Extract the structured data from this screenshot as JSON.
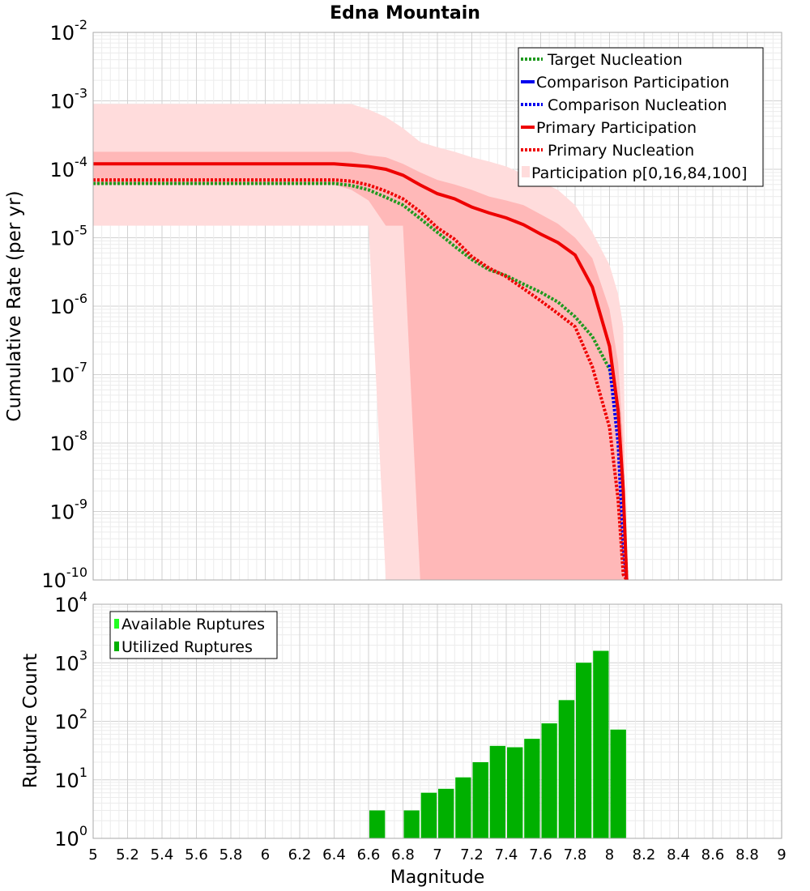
{
  "chart_data": [
    {
      "type": "line",
      "title": "Edna Mountain",
      "ylabel": "Cumulative Rate (per yr)",
      "xlabel": "",
      "xlim": [
        5,
        9
      ],
      "ylim": [
        1e-10,
        0.01
      ],
      "yscale": "log",
      "y_tick_base": "10",
      "y_tick_exponents": [
        "-10",
        "-9",
        "-8",
        "-7",
        "-6",
        "-5",
        "-4",
        "-3",
        "-2"
      ],
      "legend": {
        "position": "top-right",
        "entries": [
          "Target Nucleation",
          "Comparison Participation",
          "Comparison Nucleation",
          "Primary Participation",
          "Primary Nucleation",
          "Participation p[0,16,84,100]"
        ]
      },
      "series": [
        {
          "name": "Target Nucleation",
          "color": "#1f9a1f",
          "style": "dotted",
          "x": [
            5.0,
            5.5,
            6.0,
            6.4,
            6.5,
            6.6,
            6.7,
            6.8,
            6.9,
            7.0,
            7.1,
            7.2,
            7.3,
            7.4,
            7.5,
            7.6,
            7.7,
            7.8,
            7.9,
            8.0,
            8.05,
            8.08,
            8.1
          ],
          "y": [
            6.2e-05,
            6.2e-05,
            6.2e-05,
            6.2e-05,
            5.8e-05,
            5e-05,
            3.9e-05,
            3e-05,
            1.9e-05,
            1.2e-05,
            7.5e-06,
            4.8e-06,
            3.4e-06,
            2.8e-06,
            2.1e-06,
            1.6e-06,
            1.15e-06,
            7e-07,
            3.6e-07,
            1.2e-07,
            3e-08,
            1.5e-09,
            1e-10
          ]
        },
        {
          "name": "Comparison Participation",
          "color": "#0000ee",
          "style": "solid",
          "x": [
            8.0,
            8.05,
            8.08,
            8.1
          ],
          "y": [
            2.6e-07,
            3e-08,
            3e-09,
            1e-10
          ]
        },
        {
          "name": "Comparison Nucleation",
          "color": "#0000ee",
          "style": "dotted",
          "x": [
            8.0,
            8.05,
            8.08,
            8.1
          ],
          "y": [
            1.4e-07,
            1e-08,
            3e-10,
            1e-10
          ]
        },
        {
          "name": "Primary Participation",
          "color": "#ee0000",
          "style": "solid",
          "x": [
            5.0,
            5.5,
            6.0,
            6.4,
            6.5,
            6.6,
            6.7,
            6.8,
            6.9,
            7.0,
            7.1,
            7.2,
            7.3,
            7.4,
            7.5,
            7.6,
            7.7,
            7.8,
            7.9,
            8.0,
            8.05,
            8.08,
            8.1
          ],
          "y": [
            0.00012,
            0.00012,
            0.00012,
            0.00012,
            0.000115,
            0.00011,
            0.0001,
            8.2e-05,
            5.9e-05,
            4.4e-05,
            3.7e-05,
            2.8e-05,
            2.3e-05,
            1.95e-05,
            1.55e-05,
            1.13e-05,
            8.5e-06,
            5.6e-06,
            1.9e-06,
            2.6e-07,
            3e-08,
            2e-09,
            1e-10
          ]
        },
        {
          "name": "Primary Nucleation",
          "color": "#ee0000",
          "style": "dotted",
          "x": [
            5.0,
            5.5,
            6.0,
            6.4,
            6.5,
            6.6,
            6.7,
            6.8,
            6.9,
            7.0,
            7.1,
            7.2,
            7.3,
            7.4,
            7.5,
            7.6,
            7.7,
            7.8,
            7.9,
            8.0,
            8.05,
            8.08,
            8.1
          ],
          "y": [
            7e-05,
            7e-05,
            7e-05,
            7e-05,
            6.7e-05,
            5.9e-05,
            4.8e-05,
            3.7e-05,
            2.4e-05,
            1.4e-05,
            9.5e-06,
            5.3e-06,
            3.6e-06,
            2.7e-06,
            1.8e-06,
            1.2e-06,
            7.8e-07,
            5e-07,
            1.3e-07,
            1.7e-08,
            1.5e-09,
            1.2e-10,
            1e-10
          ]
        }
      ],
      "bands": [
        {
          "name": "Participation p[0,100]",
          "color": "#ffdcdc",
          "x": [
            5.0,
            5.5,
            6.0,
            6.4,
            6.5,
            6.6,
            6.7,
            6.8,
            6.9,
            7.0,
            7.1,
            7.2,
            7.3,
            7.4,
            7.5,
            7.6,
            7.7,
            7.8,
            7.9,
            8.0,
            8.05,
            8.08,
            8.1
          ],
          "low": [
            1.5e-05,
            1.5e-05,
            1.5e-05,
            1.5e-05,
            1.5e-05,
            1.5e-05,
            1e-10,
            1e-10,
            1e-10,
            1e-10,
            1e-10,
            1e-10,
            1e-10,
            1e-10,
            1e-10,
            1e-10,
            1e-10,
            1e-10,
            1e-10,
            1e-10,
            1e-10,
            1e-10,
            1e-10
          ],
          "high": [
            0.0009,
            0.0009,
            0.0009,
            0.0009,
            0.0009,
            0.00075,
            0.00058,
            0.0004,
            0.00025,
            0.00021,
            0.00018,
            0.00015,
            0.00013,
            0.00011,
            8.5e-05,
            6.5e-05,
            5e-05,
            3e-05,
            1.2e-05,
            4e-06,
            1.5e-06,
            5e-07,
            1e-10
          ]
        },
        {
          "name": "Participation p[16,84]",
          "color": "#ffb8b8",
          "x": [
            5.0,
            5.5,
            6.0,
            6.4,
            6.5,
            6.6,
            6.7,
            6.8,
            6.9,
            7.0,
            7.1,
            7.2,
            7.3,
            7.4,
            7.5,
            7.6,
            7.7,
            7.8,
            7.9,
            8.0,
            8.05,
            8.08,
            8.1
          ],
          "low": [
            6e-05,
            6e-05,
            6e-05,
            6e-05,
            5e-05,
            3.5e-05,
            1.5e-05,
            1.5e-05,
            1e-10,
            1e-10,
            1e-10,
            1e-10,
            1e-10,
            1e-10,
            1e-10,
            1e-10,
            1e-10,
            1e-10,
            1e-10,
            1e-10,
            1e-10,
            1e-10,
            1e-10
          ],
          "high": [
            0.00018,
            0.00018,
            0.00018,
            0.00018,
            0.00018,
            0.00016,
            0.00015,
            0.00012,
            9e-05,
            7e-05,
            6e-05,
            5e-05,
            4e-05,
            3.5e-05,
            3e-05,
            2.2e-05,
            1.6e-05,
            1e-05,
            5e-06,
            9e-07,
            1.5e-07,
            1e-08,
            1e-10
          ]
        }
      ]
    },
    {
      "type": "bar",
      "title": "",
      "ylabel": "Rupture Count",
      "xlabel": "Magnitude",
      "xlim": [
        5,
        9
      ],
      "ylim": [
        1,
        10000
      ],
      "yscale": "log",
      "y_tick_base": "10",
      "y_tick_exponents": [
        "0",
        "1",
        "2",
        "3",
        "4"
      ],
      "x_ticks": [
        "5",
        "5.2",
        "5.4",
        "5.6",
        "5.8",
        "6",
        "6.2",
        "6.4",
        "6.6",
        "6.8",
        "7",
        "7.2",
        "7.4",
        "7.6",
        "7.8",
        "8",
        "8.2",
        "8.4",
        "8.6",
        "8.8",
        "9"
      ],
      "legend": {
        "position": "top-left",
        "entries": [
          "Available Ruptures",
          "Utilized Ruptures"
        ]
      },
      "bar_width": 0.1,
      "series": [
        {
          "name": "Available Ruptures",
          "color": "#22ff22",
          "x": [
            6.65,
            6.85,
            6.95,
            7.05,
            7.15,
            7.25,
            7.35,
            7.45,
            7.55,
            7.65,
            7.75,
            7.85,
            7.95,
            8.05
          ],
          "values": [
            3,
            3,
            6,
            7,
            11,
            20,
            38,
            36,
            50,
            92,
            230,
            1000,
            1600,
            72
          ]
        },
        {
          "name": "Utilized Ruptures",
          "color": "#00b000",
          "x": [
            6.65,
            6.85,
            6.95,
            7.05,
            7.15,
            7.25,
            7.35,
            7.45,
            7.55,
            7.65,
            7.75,
            7.85,
            7.95,
            8.05
          ],
          "values": [
            3,
            3,
            6,
            7,
            11,
            20,
            38,
            36,
            50,
            92,
            230,
            1000,
            1600,
            72
          ]
        }
      ]
    }
  ]
}
